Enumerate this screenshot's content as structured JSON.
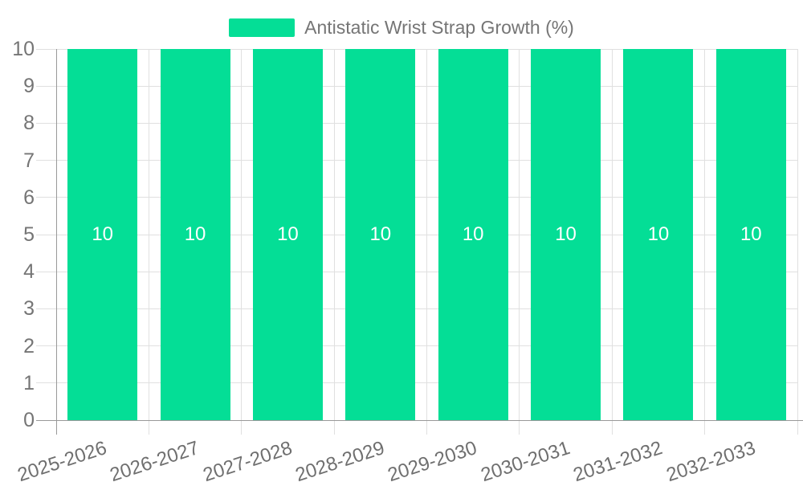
{
  "chart_data": {
    "type": "bar",
    "title": "Antistatic Wrist Strap Growth (%)",
    "categories": [
      "2025-2026",
      "2026-2027",
      "2027-2028",
      "2028-2029",
      "2029-2030",
      "2030-2031",
      "2031-2032",
      "2032-2033"
    ],
    "series": [
      {
        "name": "Antistatic Wrist Strap Growth (%)",
        "values": [
          10,
          10,
          10,
          10,
          10,
          10,
          10,
          10
        ]
      }
    ],
    "values": [
      10,
      10,
      10,
      10,
      10,
      10,
      10,
      10
    ],
    "value_labels": [
      "10",
      "10",
      "10",
      "10",
      "10",
      "10",
      "10",
      "10"
    ],
    "xlabel": "",
    "ylabel": "",
    "ylim": [
      0,
      10
    ],
    "ytick_step": 1,
    "yticks": [
      "0",
      "1",
      "2",
      "3",
      "4",
      "5",
      "6",
      "7",
      "8",
      "9",
      "10"
    ],
    "grid": "on",
    "legend": {
      "position": "top-center",
      "label": "Antistatic Wrist Strap Growth (%)",
      "swatch_icon": "legend-swatch-icon"
    },
    "colors": {
      "bar": "#04de96",
      "grid": "#e0e0e0",
      "axis": "#999999",
      "axis_label": "#757575",
      "x_label": "#6f6f6f",
      "value_label": "#ffffff",
      "background": "#ffffff"
    }
  }
}
